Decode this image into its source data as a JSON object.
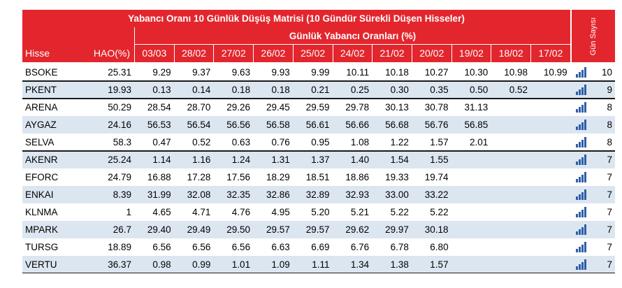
{
  "table": {
    "title": "Yabancı Oranı 10 Günlük Düşüş Matrisi  (10 Gündür Sürekli Düşen Hisseler)",
    "subtitle": "Günlük Yabancı Oranları (%)",
    "columns": [
      "Hisse",
      "HAO(%)",
      "03/03",
      "28/02",
      "27/02",
      "26/02",
      "25/02",
      "24/02",
      "21/02",
      "20/02",
      "19/02",
      "18/02",
      "17/02"
    ],
    "days_label": "Gün Sayısı",
    "rows": [
      {
        "cells": [
          "BSOKE",
          "25.31",
          "9.29",
          "9.37",
          "9.63",
          "9.93",
          "9.99",
          "10.11",
          "10.18",
          "10.27",
          "10.30",
          "10.98",
          "10.99"
        ],
        "days": 10
      },
      {
        "cells": [
          "PKENT",
          "19.93",
          "0.13",
          "0.14",
          "0.18",
          "0.18",
          "0.21",
          "0.25",
          "0.30",
          "0.35",
          "0.50",
          "0.52"
        ],
        "days": 9
      },
      {
        "cells": [
          "ARENA",
          "50.29",
          "28.54",
          "28.70",
          "29.26",
          "29.45",
          "29.59",
          "29.78",
          "30.13",
          "30.78",
          "31.13"
        ],
        "days": 8
      },
      {
        "cells": [
          "AYGAZ",
          "24.16",
          "56.53",
          "56.54",
          "56.56",
          "56.58",
          "56.61",
          "56.66",
          "56.68",
          "56.76",
          "56.85"
        ],
        "days": 8
      },
      {
        "cells": [
          "SELVA",
          "58.3",
          "0.47",
          "0.52",
          "0.63",
          "0.76",
          "0.95",
          "1.08",
          "1.22",
          "1.57",
          "2.01"
        ],
        "days": 8
      },
      {
        "cells": [
          "AKENR",
          "25.24",
          "1.14",
          "1.16",
          "1.24",
          "1.31",
          "1.37",
          "1.40",
          "1.54",
          "1.55"
        ],
        "days": 7
      },
      {
        "cells": [
          "EFORC",
          "24.79",
          "16.88",
          "17.28",
          "17.56",
          "18.29",
          "18.51",
          "18.86",
          "19.33",
          "19.74"
        ],
        "days": 7
      },
      {
        "cells": [
          "ENKAI",
          "8.39",
          "31.99",
          "32.08",
          "32.35",
          "32.86",
          "32.89",
          "32.93",
          "33.00",
          "33.22"
        ],
        "days": 7
      },
      {
        "cells": [
          "KLNMA",
          "1",
          "4.65",
          "4.71",
          "4.76",
          "4.95",
          "5.20",
          "5.21",
          "5.22",
          "5.22"
        ],
        "days": 7
      },
      {
        "cells": [
          "MPARK",
          "26.7",
          "29.40",
          "29.49",
          "29.50",
          "29.57",
          "29.57",
          "29.62",
          "29.97",
          "30.18"
        ],
        "days": 7
      },
      {
        "cells": [
          "TURSG",
          "18.89",
          "6.56",
          "6.56",
          "6.56",
          "6.63",
          "6.69",
          "6.76",
          "6.78",
          "6.80"
        ],
        "days": 7
      },
      {
        "cells": [
          "VERTU",
          "36.37",
          "0.98",
          "0.99",
          "1.01",
          "1.09",
          "1.11",
          "1.34",
          "1.38",
          "1.57"
        ],
        "days": 7
      }
    ]
  }
}
